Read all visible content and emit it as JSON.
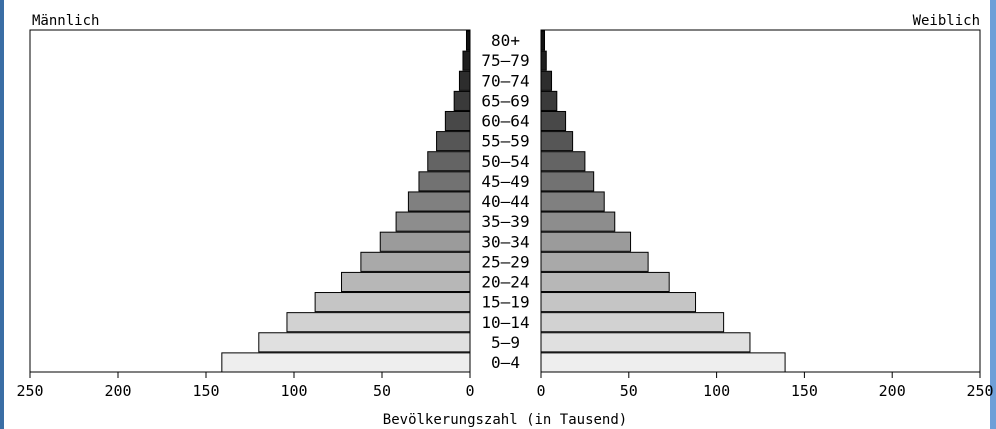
{
  "chart_data": {
    "type": "bar",
    "title": "",
    "left_label": "Männlich",
    "right_label": "Weiblich",
    "xlabel": "Bevölkerungszahl (in Tausend)",
    "ylabel": "",
    "xlim": [
      0,
      250
    ],
    "x_ticks": [
      "250",
      "200",
      "150",
      "100",
      "50",
      "0",
      "0",
      "50",
      "100",
      "150",
      "200",
      "250"
    ],
    "categories": [
      "0–4",
      "5–9",
      "10–14",
      "15–19",
      "20–24",
      "25–29",
      "30–34",
      "35–39",
      "40–44",
      "45–49",
      "50–54",
      "55–59",
      "60–64",
      "65–69",
      "70–74",
      "75–79",
      "80+"
    ],
    "series": [
      {
        "name": "Männlich",
        "values": [
          141,
          120,
          104,
          88,
          73,
          62,
          51,
          42,
          35,
          29,
          24,
          19,
          14,
          9,
          6,
          4,
          2
        ]
      },
      {
        "name": "Weiblich",
        "values": [
          139,
          119,
          104,
          88,
          73,
          61,
          51,
          42,
          36,
          30,
          25,
          18,
          14,
          9,
          6,
          3,
          2
        ]
      }
    ],
    "colors": {
      "light": "#eeeeee",
      "dark": "#111111",
      "border": "#000000"
    }
  }
}
